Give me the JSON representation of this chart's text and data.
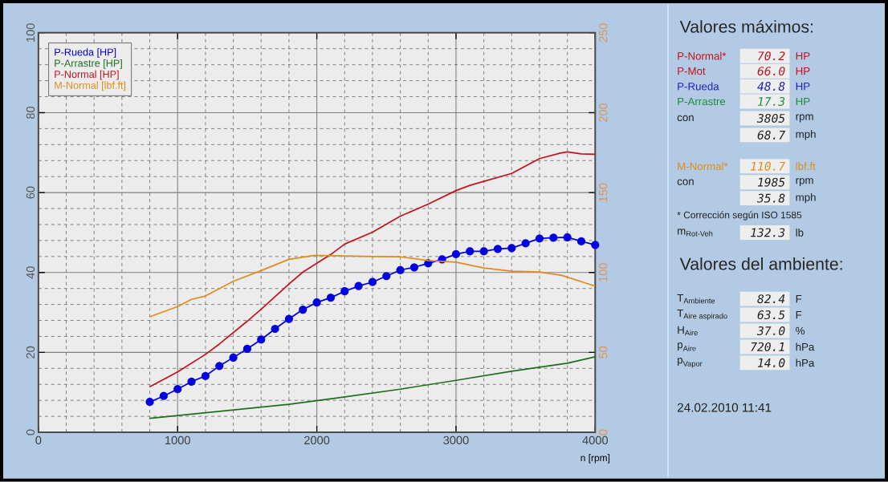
{
  "chart_data": [
    {
      "type": "line",
      "xlabel": "n [rpm]",
      "xlim": [
        0,
        4000
      ],
      "xticks": [
        0,
        1000,
        2000,
        3000,
        4000
      ],
      "ylim": [
        0,
        100
      ],
      "yticks": [
        0,
        20,
        40,
        60,
        80,
        100
      ],
      "y2lim": [
        0,
        250
      ],
      "y2ticks": [
        0,
        50,
        100,
        150,
        200,
        250
      ],
      "grid": true,
      "legend": "top left",
      "marker": "none",
      "series": [
        {
          "name": "P-Rueda [HP]",
          "color": "#0000e0",
          "marker": "circle",
          "x": [
            800,
            900,
            1000,
            1100,
            1200,
            1300,
            1400,
            1500,
            1600,
            1700,
            1800,
            1900,
            2000,
            2100,
            2200,
            2300,
            2400,
            2500,
            2600,
            2700,
            2800,
            2900,
            3000,
            3100,
            3200,
            3300,
            3400,
            3500,
            3600,
            3700,
            3800,
            3900,
            4000
          ],
          "values": [
            7.6,
            9.1,
            10.8,
            12.7,
            14.1,
            16.6,
            18.7,
            20.9,
            23.2,
            25.9,
            28.4,
            30.7,
            32.5,
            33.7,
            35.3,
            36.6,
            37.6,
            39.1,
            40.6,
            41.3,
            42.3,
            43.3,
            44.6,
            45.3,
            45.3,
            45.9,
            46.1,
            47.3,
            48.5,
            48.7,
            48.8,
            47.8,
            46.9
          ]
        },
        {
          "name": "P-Arrastre [HP]",
          "color": "#1e6e1e",
          "x": [
            800,
            1800,
            2150,
            2600,
            3000,
            3400,
            3800,
            4000
          ],
          "values": [
            3.5,
            7.0,
            8.6,
            10.8,
            13.0,
            15.3,
            17.3,
            18.9
          ]
        },
        {
          "name": "P-Normal [HP]",
          "color": "#c0141e",
          "x": [
            800,
            1000,
            1200,
            1300,
            1500,
            1600,
            1800,
            1900,
            2100,
            2200,
            2400,
            2600,
            2800,
            3000,
            3100,
            3200,
            3400,
            3600,
            3750,
            3800,
            3900,
            4000
          ],
          "values": [
            11.4,
            15.1,
            19.5,
            22.1,
            27.8,
            30.8,
            37.1,
            40.1,
            44.5,
            47.1,
            50.1,
            54.1,
            57.1,
            60.5,
            61.8,
            62.8,
            64.8,
            68.5,
            69.9,
            70.2,
            69.7,
            69.6
          ]
        },
        {
          "name": "M-Normal [lbf.ft]",
          "color": "#e08c1e",
          "axis": "y2",
          "x": [
            800,
            1000,
            1100,
            1200,
            1400,
            1600,
            1800,
            1985,
            2200,
            2400,
            2600,
            2800,
            3000,
            3200,
            3400,
            3600,
            3760,
            4000
          ],
          "values": [
            72.3,
            78.7,
            83.2,
            85.3,
            94.5,
            101.2,
            108.2,
            110.7,
            110.3,
            110.0,
            109.8,
            107.5,
            106.5,
            102.8,
            100.8,
            100.3,
            98.2,
            91.5
          ]
        }
      ]
    },
    {
      "type": "other",
      "title": "Valores máximos:",
      "subtitle": "Valores del ambiente:",
      "annotations": [
        "P-Normal*",
        "70.2",
        "HP",
        "P-Mot",
        "66.0",
        "HP",
        "P-Rueda",
        "48.8",
        "HP",
        "P-Arrastre",
        "17.3",
        "HP",
        "con",
        "3805",
        "rpm",
        "68.7",
        "mph",
        "M-Normal*",
        "110.7",
        "lbf.ft",
        "con",
        "1985",
        "rpm",
        "35.8",
        "mph",
        "* Corrección según ISO 1585",
        "\\text{m}_{\\text{Rot-Veh}}",
        "132.3",
        "lb",
        "\\text{T}_{\\text{Ambiente}}",
        "82.4",
        "F",
        "\\text{T}_{\\text{Aire aspirado}}",
        "63.5",
        "F",
        "\\text{H}_{\\text{Aire}}",
        "37.0",
        "%",
        "\\text{p}_{\\text{Aire}}",
        "720.1",
        "hPa",
        "\\text{p}_{\\text{Vapor}}",
        "14.0",
        "hPa",
        "24.02.2010  11:41"
      ],
      "colors": [
        "#c0141e",
        "#c0141e",
        "#c0141e",
        "#c0141e",
        "#c0141e",
        "#c0141e",
        "#2020c0",
        "#2020c0",
        "#2020c0",
        "#1e8a3c",
        "#1e8a3c",
        "#1e8a3c",
        "#202020",
        "#202020",
        "#202020",
        "#202020",
        "#202020",
        "#e08c1e",
        "#e08c1e",
        "#e08c1e",
        "#202020",
        "#202020",
        "#202020",
        "#202020",
        "#202020",
        "#202020",
        "#202020",
        "#202020",
        "#202020",
        "#202020",
        "#202020",
        "#202020",
        "#202020",
        "#202020",
        "#202020",
        "#202020",
        "#202020",
        "#202020",
        "#202020",
        "#202020",
        "#202020",
        "#202020",
        "#202020",
        "#202020",
        "#202020"
      ]
    }
  ]
}
